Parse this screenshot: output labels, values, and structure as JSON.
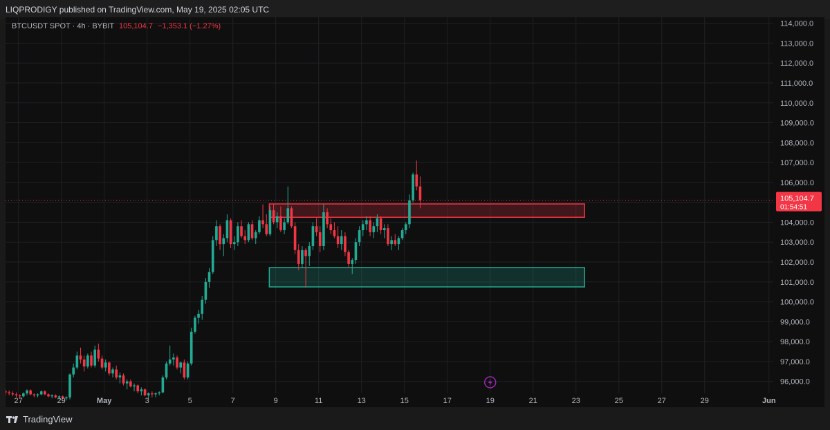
{
  "header": {
    "published_text": "LIQPRODIGY published on TradingView.com, May 19, 2025 02:05 UTC"
  },
  "legend": {
    "symbol": "BTCUSDT SPOT · 4h · BYBIT",
    "last": "105,104.7",
    "change": "−1,353.1 (−1.27%)"
  },
  "price_tag": {
    "price": "105,104.7",
    "countdown": "01:54:51"
  },
  "footer": {
    "brand": "TradingView"
  },
  "colors": {
    "up": "#22ab94",
    "down": "#f23645",
    "bg": "#0f0f0f",
    "grid": "#1f2124",
    "resistance_zone": "#f23645",
    "support_zone": "#22ab94"
  },
  "icons": {
    "bottom_marker": "lightning-icon"
  },
  "chart_data": {
    "type": "candlestick",
    "symbol": "BTCUSDT",
    "interval": "4h",
    "exchange": "BYBIT",
    "y_axis": {
      "ticks": [
        "114,000.0",
        "113,000.0",
        "112,000.0",
        "111,000.0",
        "110,000.0",
        "109,000.0",
        "108,000.0",
        "107,000.0",
        "106,000.0",
        "105,000.0",
        "104,000.0",
        "103,000.0",
        "102,000.0",
        "101,000.0",
        "100,000.0",
        "99,000.0",
        "98,000.0",
        "97,000.0",
        "96,000.0"
      ],
      "range": [
        95400,
        114300
      ]
    },
    "x_axis": {
      "ticks": [
        {
          "label": "27",
          "day": -4
        },
        {
          "label": "29",
          "day": -2
        },
        {
          "label": "May",
          "day": 0
        },
        {
          "label": "3",
          "day": 2
        },
        {
          "label": "5",
          "day": 4
        },
        {
          "label": "7",
          "day": 6
        },
        {
          "label": "9",
          "day": 8
        },
        {
          "label": "11",
          "day": 10
        },
        {
          "label": "13",
          "day": 12
        },
        {
          "label": "15",
          "day": 14
        },
        {
          "label": "17",
          "day": 16
        },
        {
          "label": "19",
          "day": 18
        },
        {
          "label": "21",
          "day": 20
        },
        {
          "label": "23",
          "day": 22
        },
        {
          "label": "25",
          "day": 24
        },
        {
          "label": "27",
          "day": 26
        },
        {
          "label": "29",
          "day": 28
        },
        {
          "label": "Jun",
          "day": 31
        }
      ],
      "range_days": [
        -4.6,
        31.2
      ]
    },
    "last_price": 105104.7,
    "zones": [
      {
        "name": "resistance",
        "from_day": 7.7,
        "to_day": 22.4,
        "low": 104250,
        "high": 104920
      },
      {
        "name": "support",
        "from_day": 7.7,
        "to_day": 22.4,
        "low": 100750,
        "high": 101720
      }
    ],
    "ohlc": [
      [
        95500,
        95600,
        95300,
        95450
      ],
      [
        95450,
        95550,
        95300,
        95400
      ],
      [
        95400,
        95500,
        95250,
        95350
      ],
      [
        95350,
        95450,
        95200,
        95300
      ],
      [
        95300,
        95350,
        95150,
        95250
      ],
      [
        95250,
        95450,
        95200,
        95400
      ],
      [
        95400,
        95600,
        95300,
        95550
      ],
      [
        95550,
        95600,
        95300,
        95350
      ],
      [
        95350,
        95400,
        95200,
        95300
      ],
      [
        95300,
        95400,
        95200,
        95350
      ],
      [
        95350,
        95550,
        95300,
        95500
      ],
      [
        95500,
        95550,
        95300,
        95350
      ],
      [
        95350,
        95400,
        95200,
        95250
      ],
      [
        95250,
        95350,
        95150,
        95300
      ],
      [
        95300,
        95350,
        95150,
        95200
      ],
      [
        95200,
        95300,
        95100,
        95250
      ],
      [
        95250,
        95300,
        95100,
        95150
      ],
      [
        95150,
        95250,
        95050,
        95200
      ],
      [
        95200,
        96400,
        95100,
        96350
      ],
      [
        96350,
        96900,
        96200,
        96700
      ],
      [
        96700,
        97500,
        96600,
        97300
      ],
      [
        97300,
        97700,
        96900,
        97100
      ],
      [
        97100,
        97300,
        96500,
        96750
      ],
      [
        96750,
        97400,
        96650,
        97300
      ],
      [
        97300,
        97500,
        96700,
        96800
      ],
      [
        96800,
        97800,
        96700,
        97600
      ],
      [
        97600,
        97900,
        97000,
        97150
      ],
      [
        97150,
        97300,
        96600,
        96700
      ],
      [
        96700,
        97100,
        96500,
        96950
      ],
      [
        96950,
        97000,
        96300,
        96400
      ],
      [
        96400,
        96700,
        96200,
        96600
      ],
      [
        96600,
        96800,
        96100,
        96200
      ],
      [
        96200,
        96450,
        95900,
        96300
      ],
      [
        96300,
        96400,
        95800,
        95900
      ],
      [
        95900,
        96100,
        95600,
        96000
      ],
      [
        96000,
        96100,
        95700,
        95750
      ],
      [
        95750,
        95900,
        95500,
        95800
      ],
      [
        95800,
        95850,
        95400,
        95500
      ],
      [
        95500,
        95700,
        95300,
        95600
      ],
      [
        95600,
        95650,
        95250,
        95300
      ],
      [
        95300,
        95450,
        95150,
        95400
      ],
      [
        95400,
        95500,
        95200,
        95350
      ],
      [
        95350,
        95450,
        95200,
        95400
      ],
      [
        95400,
        95500,
        95300,
        95450
      ],
      [
        95450,
        96300,
        95400,
        96200
      ],
      [
        96200,
        97000,
        96100,
        96900
      ],
      [
        96900,
        97800,
        96800,
        97100
      ],
      [
        97100,
        97400,
        96800,
        97200
      ],
      [
        97200,
        97300,
        96600,
        96700
      ],
      [
        96700,
        97000,
        96400,
        96950
      ],
      [
        96950,
        97100,
        96100,
        96200
      ],
      [
        96200,
        97000,
        96100,
        96900
      ],
      [
        96900,
        98700,
        96800,
        98500
      ],
      [
        98500,
        99300,
        98400,
        99200
      ],
      [
        99200,
        99600,
        98900,
        99400
      ],
      [
        99400,
        100300,
        99100,
        100100
      ],
      [
        100100,
        101200,
        99900,
        101000
      ],
      [
        101000,
        101700,
        100700,
        101500
      ],
      [
        101500,
        103300,
        101400,
        103100
      ],
      [
        103100,
        104100,
        102800,
        103800
      ],
      [
        103800,
        103900,
        102600,
        102900
      ],
      [
        102900,
        103400,
        102300,
        103200
      ],
      [
        103200,
        104400,
        103000,
        104100
      ],
      [
        104100,
        104200,
        102700,
        102900
      ],
      [
        102900,
        103300,
        102600,
        103000
      ],
      [
        103000,
        104000,
        102800,
        103800
      ],
      [
        103800,
        104100,
        103200,
        103300
      ],
      [
        103300,
        103600,
        102900,
        103100
      ],
      [
        103100,
        104000,
        103000,
        103900
      ],
      [
        103900,
        104100,
        103100,
        103200
      ],
      [
        103200,
        103600,
        102900,
        103500
      ],
      [
        103500,
        104300,
        103400,
        104100
      ],
      [
        104100,
        104900,
        103700,
        103900
      ],
      [
        103900,
        104400,
        103300,
        103400
      ],
      [
        103400,
        104800,
        103300,
        104600
      ],
      [
        104600,
        104900,
        103900,
        104000
      ],
      [
        104000,
        104500,
        103700,
        104300
      ],
      [
        104300,
        104800,
        103500,
        103600
      ],
      [
        103600,
        104200,
        103400,
        104000
      ],
      [
        104000,
        105800,
        103900,
        104700
      ],
      [
        104700,
        104800,
        103700,
        103800
      ],
      [
        103800,
        104000,
        102400,
        102600
      ],
      [
        102600,
        102900,
        101600,
        101900
      ],
      [
        101900,
        102800,
        101700,
        102600
      ],
      [
        102600,
        102700,
        100700,
        102300
      ],
      [
        102300,
        103000,
        101800,
        102800
      ],
      [
        102800,
        104000,
        102600,
        103800
      ],
      [
        103800,
        104200,
        103300,
        103500
      ],
      [
        103500,
        103800,
        102500,
        102800
      ],
      [
        102800,
        104900,
        102600,
        104500
      ],
      [
        104500,
        104700,
        103700,
        103900
      ],
      [
        103900,
        104200,
        103400,
        103600
      ],
      [
        103600,
        104000,
        103200,
        103300
      ],
      [
        103300,
        103800,
        102700,
        102900
      ],
      [
        102900,
        103600,
        102600,
        103300
      ],
      [
        103300,
        103500,
        102300,
        102500
      ],
      [
        102500,
        102600,
        101700,
        101900
      ],
      [
        101900,
        102200,
        101400,
        102100
      ],
      [
        102100,
        103200,
        101900,
        103000
      ],
      [
        103000,
        103800,
        102800,
        103600
      ],
      [
        103600,
        104100,
        103300,
        103900
      ],
      [
        103900,
        104300,
        103600,
        104100
      ],
      [
        104100,
        104300,
        103300,
        103500
      ],
      [
        103500,
        104000,
        103200,
        103800
      ],
      [
        103800,
        104400,
        103500,
        104200
      ],
      [
        104200,
        104300,
        103400,
        103600
      ],
      [
        103600,
        103900,
        103200,
        103700
      ],
      [
        103700,
        103900,
        102800,
        102900
      ],
      [
        102900,
        103300,
        102600,
        103100
      ],
      [
        103100,
        103400,
        102800,
        102900
      ],
      [
        102900,
        103300,
        102600,
        103200
      ],
      [
        103200,
        103700,
        103100,
        103600
      ],
      [
        103600,
        104000,
        103400,
        103900
      ],
      [
        103900,
        105400,
        103700,
        105100
      ],
      [
        105100,
        106500,
        105000,
        106400
      ],
      [
        106400,
        107100,
        105600,
        105800
      ],
      [
        105800,
        106300,
        104700,
        105100
      ]
    ]
  }
}
